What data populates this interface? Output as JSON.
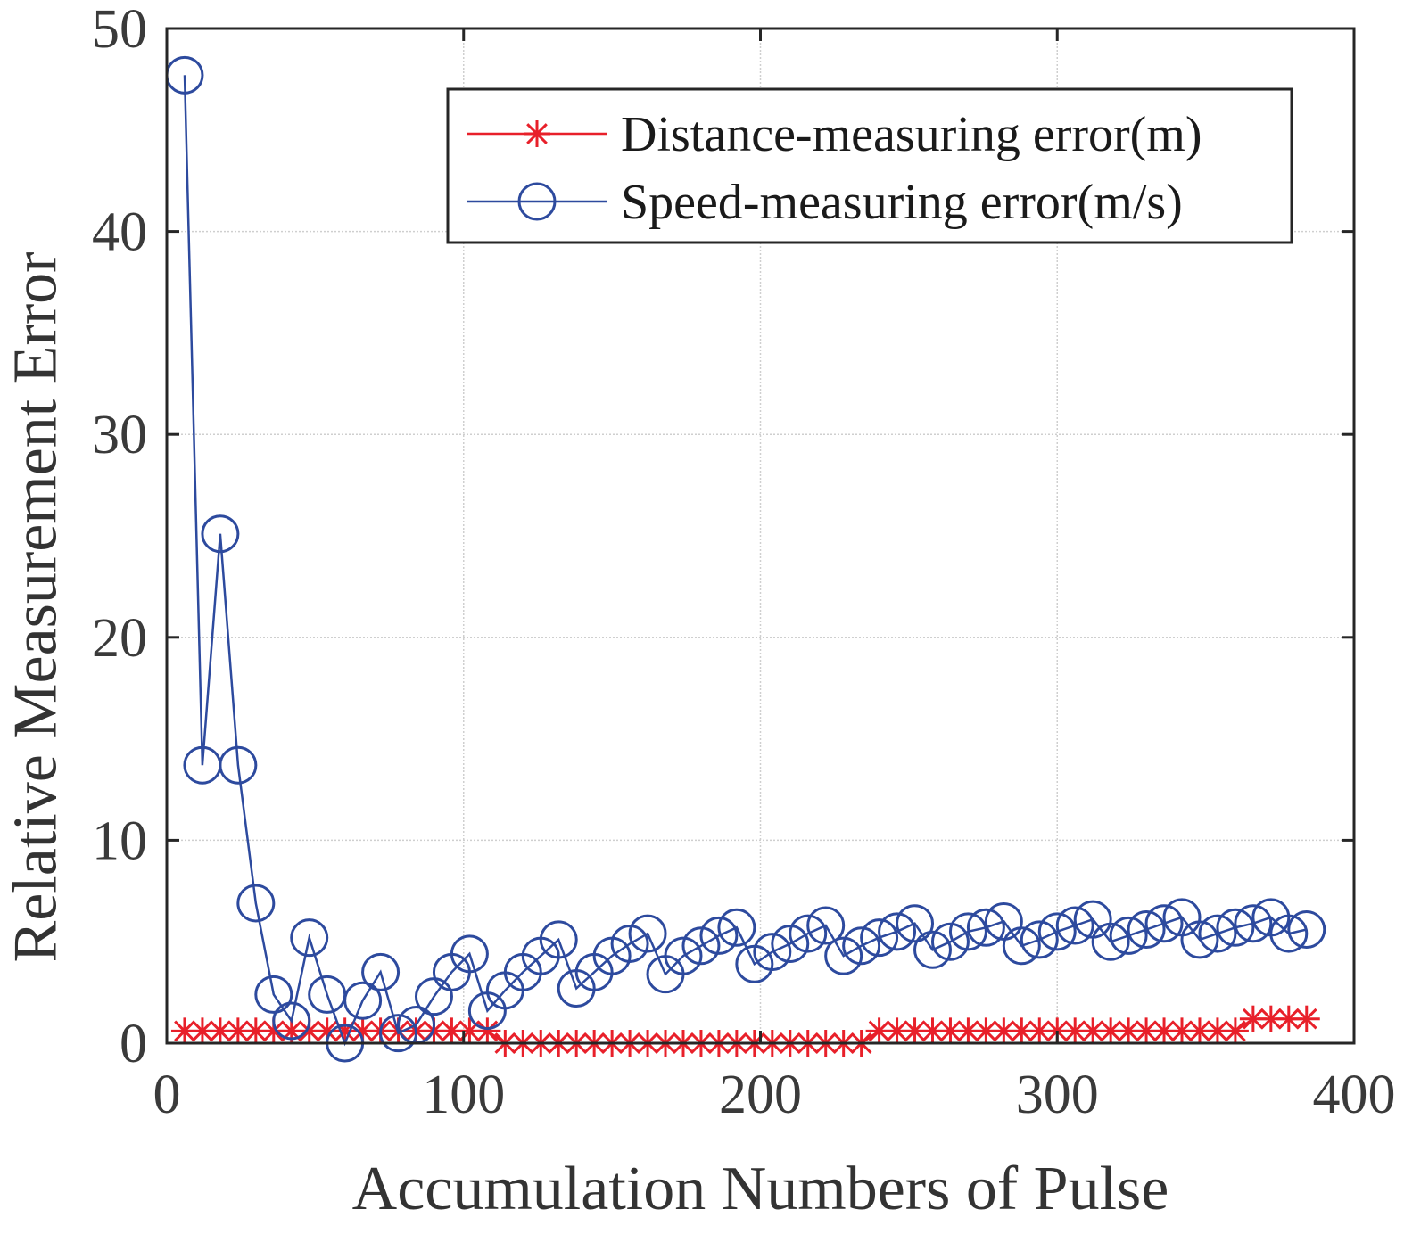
{
  "chart_data": {
    "type": "line",
    "title": "",
    "xlabel": "Accumulation Numbers of Pulse",
    "ylabel": "Relative Measurement Error",
    "xlim": [
      0,
      400
    ],
    "ylim": [
      0,
      50
    ],
    "xticks": [
      0,
      100,
      200,
      300,
      400
    ],
    "yticks": [
      0,
      10,
      20,
      30,
      40,
      50
    ],
    "xtick_labels": [
      "0",
      "100",
      "200",
      "300",
      "400"
    ],
    "ytick_labels": [
      "0",
      "10",
      "20",
      "30",
      "40",
      "50"
    ],
    "grid": true,
    "legend": "top-right",
    "series": [
      {
        "name": "Distance-measuring error(m)",
        "color": "#e8202a",
        "marker": "asterisk",
        "x": [
          6,
          12,
          18,
          24,
          30,
          36,
          42,
          48,
          54,
          60,
          66,
          72,
          78,
          84,
          90,
          96,
          102,
          108,
          114,
          120,
          126,
          132,
          138,
          144,
          150,
          156,
          162,
          168,
          174,
          180,
          186,
          192,
          198,
          204,
          210,
          216,
          222,
          228,
          234,
          240,
          246,
          252,
          258,
          264,
          270,
          276,
          282,
          288,
          294,
          300,
          306,
          312,
          318,
          324,
          330,
          336,
          342,
          348,
          354,
          360,
          366,
          372,
          378,
          384
        ],
        "values": [
          0.6,
          0.6,
          0.6,
          0.6,
          0.6,
          0.6,
          0.6,
          0.6,
          0.6,
          0.6,
          0.6,
          0.6,
          0.6,
          0.6,
          0.6,
          0.6,
          0.6,
          0.6,
          0,
          0,
          0,
          0,
          0,
          0,
          0,
          0,
          0,
          0,
          0,
          0,
          0,
          0,
          0,
          0,
          0,
          0,
          0,
          0,
          0,
          0.6,
          0.6,
          0.6,
          0.6,
          0.6,
          0.6,
          0.6,
          0.6,
          0.6,
          0.6,
          0.6,
          0.6,
          0.6,
          0.6,
          0.6,
          0.6,
          0.6,
          0.6,
          0.6,
          0.6,
          0.6,
          1.2,
          1.2,
          1.2,
          1.2
        ]
      },
      {
        "name": "Speed-measuring error(m/s)",
        "color": "#2d4a9e",
        "marker": "circle",
        "x": [
          6,
          12,
          18,
          24,
          30,
          36,
          42,
          48,
          54,
          60,
          66,
          72,
          78,
          84,
          90,
          96,
          102,
          108,
          114,
          120,
          126,
          132,
          138,
          144,
          150,
          156,
          162,
          168,
          174,
          180,
          186,
          192,
          198,
          204,
          210,
          216,
          222,
          228,
          234,
          240,
          246,
          252,
          258,
          264,
          270,
          276,
          282,
          288,
          294,
          300,
          306,
          312,
          318,
          324,
          330,
          336,
          342,
          348,
          354,
          360,
          366,
          372,
          378,
          384
        ],
        "values": [
          47.7,
          13.7,
          25.1,
          13.7,
          6.9,
          2.4,
          1.1,
          5.2,
          2.4,
          0,
          2.1,
          3.5,
          0.5,
          0.9,
          2.3,
          3.5,
          4.4,
          1.6,
          2.6,
          3.5,
          4.3,
          5.1,
          2.7,
          3.5,
          4.3,
          4.9,
          5.4,
          3.4,
          4.3,
          4.8,
          5.3,
          5.7,
          3.9,
          4.5,
          4.9,
          5.4,
          5.8,
          4.3,
          4.8,
          5.2,
          5.5,
          5.9,
          4.6,
          5.0,
          5.5,
          5.7,
          6.0,
          4.8,
          5.1,
          5.5,
          5.8,
          6.1,
          5.0,
          5.3,
          5.6,
          5.9,
          6.2,
          5.1,
          5.4,
          5.7,
          5.9,
          6.2,
          5.4,
          5.6
        ]
      }
    ]
  }
}
